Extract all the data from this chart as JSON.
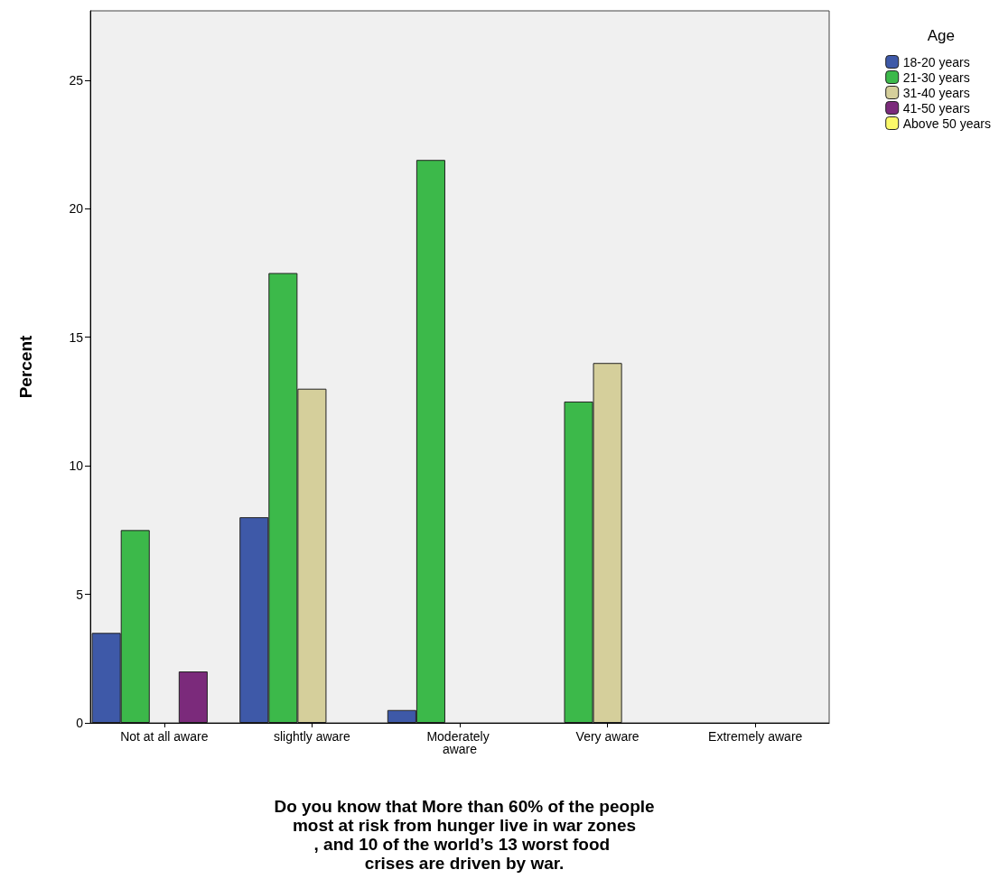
{
  "chart_data": {
    "type": "bar",
    "xlabel": "Do you know that More than 60% of the people most at risk from hunger live in war zones , and 10 of the world’s 13 worst food crises are driven by war.",
    "ylabel": "Percent",
    "legend_title": "Age",
    "categories": [
      "Not at all aware",
      "slightly aware",
      "Moderately aware",
      "Very aware",
      "Extremely aware"
    ],
    "series": [
      {
        "name": "18-20 years",
        "color": "#3e59a8",
        "values": [
          3.5,
          8,
          0.5,
          null,
          null
        ]
      },
      {
        "name": "21-30 years",
        "color": "#3cb94a",
        "values": [
          7.5,
          17.5,
          21.9,
          12.5,
          null
        ]
      },
      {
        "name": "31-40 years",
        "color": "#d5cf9b",
        "values": [
          null,
          13,
          null,
          14,
          null
        ]
      },
      {
        "name": "41-50 years",
        "color": "#7b2a7b",
        "values": [
          2,
          null,
          null,
          null,
          null
        ]
      },
      {
        "name": "Above 50 years",
        "color": "#fbf969",
        "values": [
          null,
          null,
          null,
          null,
          null
        ]
      }
    ],
    "ylim": [
      0,
      27.7
    ],
    "yticks": [
      0,
      5,
      10,
      15,
      20,
      25
    ],
    "grid": false,
    "legend": "top right"
  }
}
